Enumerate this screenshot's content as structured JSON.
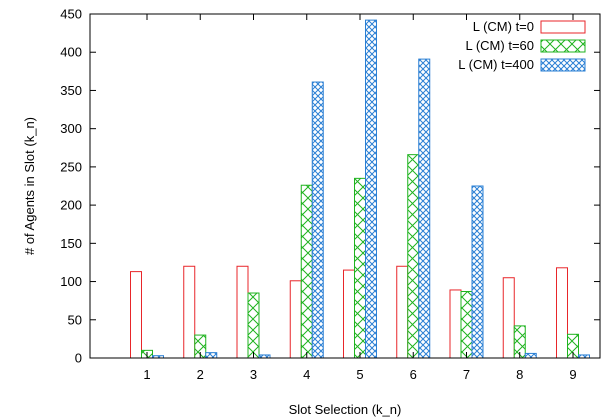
{
  "chart_data": {
    "type": "bar",
    "title": "",
    "xlabel": "Slot Selection (k_n)",
    "ylabel": "# of Agents in Slot (k_n)",
    "categories": [
      "1",
      "2",
      "3",
      "4",
      "5",
      "6",
      "7",
      "8",
      "9"
    ],
    "ylim": [
      0,
      450
    ],
    "yticks": [
      0,
      50,
      100,
      150,
      200,
      250,
      300,
      350,
      400,
      450
    ],
    "grid": false,
    "legend_position": "top-right",
    "series": [
      {
        "name": "L (CM) t=0",
        "color": "#e8262a",
        "pattern": "hollow",
        "values": [
          113,
          120,
          120,
          101,
          115,
          120,
          89,
          105,
          118
        ]
      },
      {
        "name": "L (CM) t=60",
        "color": "#1fb31f",
        "pattern": "cross",
        "values": [
          10,
          30,
          85,
          226,
          235,
          266,
          87,
          42,
          31
        ]
      },
      {
        "name": "L (CM) t=400",
        "color": "#2a7fd4",
        "pattern": "cross-fine",
        "values": [
          3,
          7,
          4,
          361,
          442,
          391,
          225,
          6,
          4
        ]
      }
    ]
  }
}
